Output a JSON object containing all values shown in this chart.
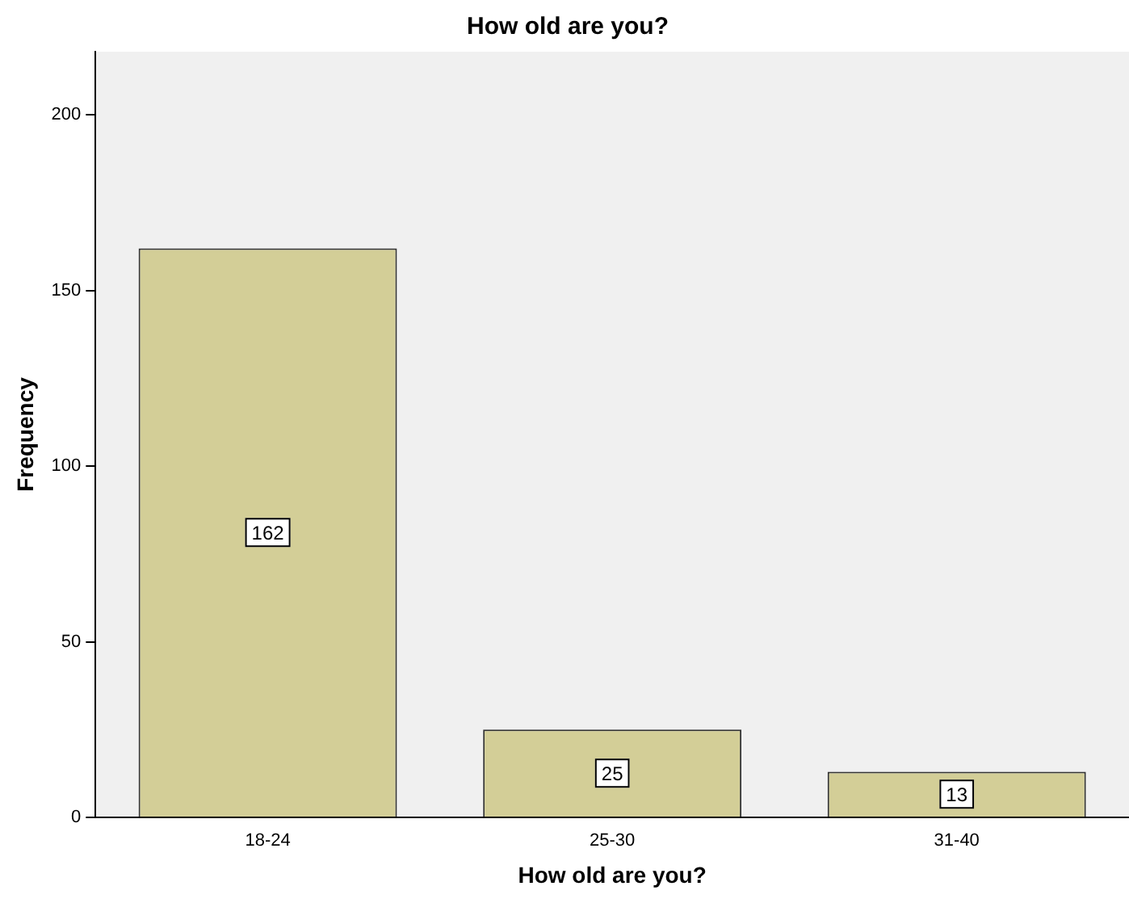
{
  "chart_data": {
    "type": "bar",
    "title": "How old are you?",
    "xlabel": "How old are you?",
    "ylabel": "Frequency",
    "categories": [
      "18-24",
      "25-30",
      "31-40"
    ],
    "values": [
      162,
      25,
      13
    ],
    "color": "#d3ce97",
    "ylim": [
      0,
      218
    ],
    "yticks": [
      0,
      50,
      100,
      150,
      200
    ],
    "grid": false,
    "data_labels": true
  }
}
